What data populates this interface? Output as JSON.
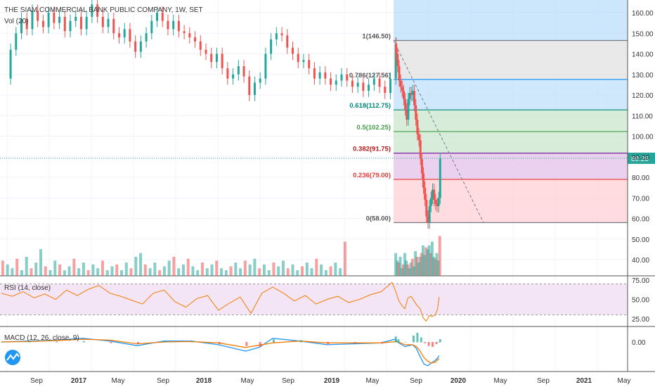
{
  "header": {
    "title": "THE SIAM COMMERCIAL BANK PUBLIC COMPANY, 1W, SET",
    "volume_label": "Vol (20)"
  },
  "indicators": {
    "rsi_label": "RSI (14, close)",
    "macd_label": "MACD (12, 26, close, 9)"
  },
  "colors": {
    "up": "#26a69a",
    "down": "#ef5350",
    "rsi_line": "#f57c00",
    "macd_line": "#2196f3",
    "signal_line": "#f57c00",
    "price_line": "#26a69a"
  },
  "chart_data": {
    "type": "candlestick",
    "symbol": "THE SIAM COMMERCIAL BANK PUBLIC COMPANY",
    "interval": "1W",
    "exchange": "SET",
    "price_axis": {
      "ticks": [
        "160.00",
        "150.00",
        "140.00",
        "130.00",
        "120.00",
        "110.00",
        "100.00",
        "90.00",
        "80.00",
        "70.00",
        "60.00",
        "50.00",
        "40.00"
      ],
      "range": [
        35,
        166
      ]
    },
    "rsi_axis": {
      "ticks": [
        "75.00",
        "50.00",
        "25.00"
      ],
      "bands": [
        30,
        70
      ]
    },
    "macd_axis": {
      "ticks": [
        "0.00"
      ]
    },
    "time_axis": [
      "Sep",
      "2017",
      "May",
      "Sep",
      "2018",
      "May",
      "Sep",
      "2019",
      "May",
      "Sep",
      "2020",
      "May",
      "Sep",
      "2021",
      "May"
    ],
    "current_price": "89.25",
    "fibonacci": [
      {
        "label": "1(146.50)",
        "price": 146.5
      },
      {
        "label": "0.786(127.56)",
        "price": 127.56
      },
      {
        "label": "0.618(112.75)",
        "price": 112.75
      },
      {
        "label": "0.5(102.25)",
        "price": 102.25
      },
      {
        "label": "0.382(91.75)",
        "price": 91.75
      },
      {
        "label": "0.236(79.00)",
        "price": 79.0
      },
      {
        "label": "0(58.00)",
        "price": 58.0
      }
    ],
    "fib_label_colors": [
      "#555555",
      "#555555",
      "#00897b",
      "#43a047",
      "#b71c1c",
      "#e53935",
      "#555555"
    ],
    "price_path": [
      [
        0,
        128
      ],
      [
        6,
        142
      ],
      [
        10,
        150
      ],
      [
        14,
        157
      ],
      [
        18,
        152
      ],
      [
        22,
        161
      ],
      [
        26,
        156
      ],
      [
        30,
        153
      ],
      [
        34,
        160
      ],
      [
        38,
        155
      ],
      [
        42,
        158
      ],
      [
        46,
        151
      ],
      [
        50,
        156
      ],
      [
        54,
        158
      ],
      [
        58,
        152
      ],
      [
        62,
        158
      ],
      [
        66,
        164
      ],
      [
        70,
        158
      ],
      [
        74,
        153
      ],
      [
        78,
        157
      ],
      [
        82,
        150
      ],
      [
        86,
        148
      ],
      [
        90,
        152
      ],
      [
        94,
        146
      ],
      [
        98,
        141
      ],
      [
        102,
        146
      ],
      [
        106,
        150
      ],
      [
        110,
        156
      ],
      [
        114,
        160
      ],
      [
        118,
        156
      ],
      [
        122,
        152
      ],
      [
        126,
        156
      ],
      [
        130,
        151
      ],
      [
        134,
        150
      ],
      [
        138,
        148
      ],
      [
        142,
        146
      ],
      [
        146,
        142
      ],
      [
        150,
        140
      ],
      [
        154,
        136
      ],
      [
        158,
        140
      ],
      [
        162,
        133
      ],
      [
        166,
        128
      ],
      [
        170,
        130
      ],
      [
        174,
        134
      ],
      [
        178,
        129
      ],
      [
        182,
        120
      ],
      [
        186,
        126
      ],
      [
        190,
        128
      ],
      [
        194,
        140
      ],
      [
        198,
        147
      ],
      [
        202,
        150
      ],
      [
        206,
        149
      ],
      [
        210,
        143
      ],
      [
        214,
        140
      ],
      [
        218,
        136
      ],
      [
        222,
        137
      ],
      [
        226,
        133
      ],
      [
        230,
        128
      ],
      [
        234,
        131
      ],
      [
        238,
        128
      ],
      [
        242,
        125
      ],
      [
        246,
        127
      ],
      [
        250,
        130
      ],
      [
        254,
        127
      ],
      [
        258,
        124
      ],
      [
        262,
        126
      ],
      [
        266,
        122
      ],
      [
        270,
        125
      ],
      [
        274,
        128
      ],
      [
        278,
        124
      ],
      [
        282,
        121
      ],
      [
        286,
        128
      ],
      [
        290,
        145
      ],
      [
        294,
        140
      ],
      [
        298,
        134
      ],
      [
        302,
        127
      ],
      [
        306,
        124
      ],
      [
        310,
        122
      ],
      [
        314,
        118
      ],
      [
        318,
        113
      ],
      [
        322,
        108
      ],
      [
        326,
        118
      ],
      [
        330,
        121
      ],
      [
        334,
        120
      ],
      [
        338,
        122
      ],
      [
        342,
        115
      ],
      [
        346,
        108
      ],
      [
        350,
        101
      ],
      [
        354,
        98
      ],
      [
        358,
        89
      ],
      [
        362,
        82
      ],
      [
        366,
        75
      ],
      [
        370,
        69
      ],
      [
        374,
        61
      ],
      [
        378,
        58
      ],
      [
        382,
        66
      ],
      [
        386,
        70
      ],
      [
        390,
        74
      ],
      [
        394,
        69
      ],
      [
        398,
        67
      ],
      [
        402,
        66
      ],
      [
        406,
        70
      ],
      [
        410,
        89
      ]
    ],
    "volume_bars": [
      [
        0,
        42
      ],
      [
        4,
        40
      ],
      [
        8,
        38
      ],
      [
        12,
        43
      ],
      [
        16,
        36
      ],
      [
        20,
        44
      ],
      [
        24,
        38
      ],
      [
        28,
        41
      ],
      [
        32,
        48
      ],
      [
        36,
        39
      ],
      [
        40,
        37
      ],
      [
        44,
        42
      ],
      [
        48,
        40
      ],
      [
        52,
        36
      ],
      [
        56,
        39
      ],
      [
        60,
        43
      ],
      [
        64,
        38
      ],
      [
        68,
        41
      ],
      [
        72,
        37
      ],
      [
        76,
        40
      ],
      [
        80,
        38
      ],
      [
        84,
        42
      ],
      [
        88,
        36
      ],
      [
        92,
        39
      ],
      [
        96,
        40
      ],
      [
        100,
        37
      ],
      [
        104,
        41
      ],
      [
        108,
        38
      ],
      [
        112,
        44
      ],
      [
        116,
        46
      ],
      [
        120,
        40
      ],
      [
        124,
        38
      ],
      [
        128,
        41
      ],
      [
        132,
        37
      ],
      [
        136,
        39
      ],
      [
        140,
        42
      ],
      [
        144,
        44
      ],
      [
        148,
        38
      ],
      [
        152,
        40
      ],
      [
        156,
        43
      ],
      [
        160,
        39
      ],
      [
        164,
        37
      ],
      [
        168,
        41
      ],
      [
        172,
        38
      ],
      [
        176,
        40
      ],
      [
        180,
        42
      ],
      [
        184,
        38
      ],
      [
        188,
        36
      ],
      [
        192,
        39
      ],
      [
        196,
        41
      ],
      [
        200,
        38
      ],
      [
        204,
        42
      ],
      [
        208,
        40
      ],
      [
        212,
        43
      ],
      [
        216,
        38
      ],
      [
        220,
        40
      ],
      [
        224,
        37
      ],
      [
        228,
        41
      ],
      [
        232,
        39
      ],
      [
        236,
        42
      ],
      [
        240,
        38
      ],
      [
        244,
        40
      ],
      [
        248,
        36
      ],
      [
        252,
        39
      ],
      [
        256,
        41
      ],
      [
        260,
        38
      ],
      [
        264,
        43
      ],
      [
        268,
        40
      ],
      [
        272,
        37
      ],
      [
        276,
        39
      ],
      [
        280,
        41
      ],
      [
        284,
        38
      ],
      [
        288,
        52
      ],
      [
        292,
        46
      ],
      [
        296,
        42
      ],
      [
        300,
        41
      ],
      [
        304,
        44
      ],
      [
        308,
        38
      ],
      [
        312,
        40
      ],
      [
        316,
        46
      ],
      [
        320,
        42
      ],
      [
        324,
        40
      ],
      [
        328,
        38
      ],
      [
        332,
        41
      ],
      [
        336,
        43
      ],
      [
        340,
        39
      ],
      [
        344,
        47
      ],
      [
        348,
        44
      ],
      [
        352,
        41
      ],
      [
        356,
        44
      ],
      [
        360,
        46
      ],
      [
        364,
        50
      ],
      [
        368,
        45
      ],
      [
        372,
        49
      ],
      [
        376,
        48
      ],
      [
        380,
        50
      ],
      [
        384,
        46
      ],
      [
        388,
        52
      ],
      [
        392,
        44
      ],
      [
        396,
        43
      ],
      [
        400,
        46
      ],
      [
        404,
        42
      ],
      [
        408,
        55
      ]
    ],
    "rsi_path": [
      [
        0,
        58
      ],
      [
        8,
        54
      ],
      [
        16,
        60
      ],
      [
        24,
        52
      ],
      [
        32,
        57
      ],
      [
        40,
        50
      ],
      [
        48,
        62
      ],
      [
        56,
        55
      ],
      [
        64,
        63
      ],
      [
        72,
        68
      ],
      [
        80,
        58
      ],
      [
        88,
        54
      ],
      [
        96,
        49
      ],
      [
        104,
        44
      ],
      [
        112,
        58
      ],
      [
        120,
        62
      ],
      [
        128,
        47
      ],
      [
        136,
        40
      ],
      [
        144,
        51
      ],
      [
        152,
        55
      ],
      [
        160,
        36
      ],
      [
        168,
        45
      ],
      [
        176,
        53
      ],
      [
        184,
        32
      ],
      [
        192,
        58
      ],
      [
        200,
        66
      ],
      [
        208,
        58
      ],
      [
        216,
        48
      ],
      [
        224,
        55
      ],
      [
        232,
        44
      ],
      [
        240,
        50
      ],
      [
        248,
        54
      ],
      [
        256,
        46
      ],
      [
        264,
        50
      ],
      [
        272,
        56
      ],
      [
        280,
        60
      ],
      [
        288,
        72
      ],
      [
        296,
        60
      ],
      [
        304,
        48
      ],
      [
        312,
        42
      ],
      [
        320,
        38
      ],
      [
        328,
        52
      ],
      [
        336,
        54
      ],
      [
        344,
        48
      ],
      [
        352,
        42
      ],
      [
        360,
        38
      ],
      [
        368,
        26
      ],
      [
        376,
        22
      ],
      [
        384,
        29
      ],
      [
        392,
        28
      ],
      [
        400,
        30
      ],
      [
        406,
        38
      ],
      [
        410,
        53
      ]
    ],
    "macd_path": [
      [
        0,
        0.0
      ],
      [
        20,
        0.1
      ],
      [
        40,
        0.2
      ],
      [
        60,
        0.4
      ],
      [
        80,
        0.1
      ],
      [
        100,
        -0.4
      ],
      [
        120,
        0.1
      ],
      [
        140,
        0.1
      ],
      [
        160,
        -0.3
      ],
      [
        180,
        -1.0
      ],
      [
        190,
        -0.6
      ],
      [
        200,
        0.4
      ],
      [
        220,
        0.1
      ],
      [
        240,
        -0.3
      ],
      [
        260,
        -0.2
      ],
      [
        280,
        -0.1
      ],
      [
        290,
        0.3
      ],
      [
        300,
        0.0
      ],
      [
        320,
        -0.5
      ],
      [
        340,
        -0.3
      ],
      [
        350,
        -0.7
      ],
      [
        360,
        -1.6
      ],
      [
        370,
        -2.4
      ],
      [
        380,
        -2.6
      ],
      [
        390,
        -2.3
      ],
      [
        400,
        -2.0
      ],
      [
        405,
        -1.8
      ],
      [
        410,
        -1.5
      ]
    ],
    "signal_path": [
      [
        0,
        0.0
      ],
      [
        20,
        0.05
      ],
      [
        40,
        0.15
      ],
      [
        60,
        0.3
      ],
      [
        80,
        0.2
      ],
      [
        100,
        -0.2
      ],
      [
        120,
        0.0
      ],
      [
        140,
        0.05
      ],
      [
        160,
        -0.1
      ],
      [
        180,
        -0.6
      ],
      [
        200,
        -0.1
      ],
      [
        220,
        0.1
      ],
      [
        240,
        -0.1
      ],
      [
        260,
        -0.1
      ],
      [
        280,
        -0.1
      ],
      [
        300,
        0.05
      ],
      [
        320,
        -0.3
      ],
      [
        340,
        -0.3
      ],
      [
        350,
        -0.5
      ],
      [
        360,
        -1.0
      ],
      [
        370,
        -1.7
      ],
      [
        380,
        -2.1
      ],
      [
        390,
        -2.3
      ],
      [
        400,
        -2.2
      ],
      [
        410,
        -1.8
      ]
    ]
  }
}
